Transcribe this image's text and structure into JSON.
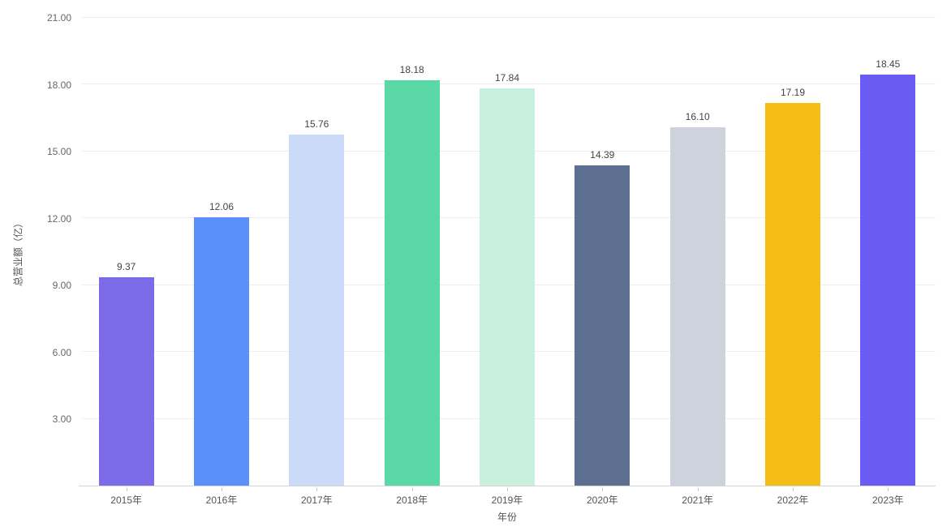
{
  "chart_data": {
    "type": "bar",
    "title": "",
    "categories": [
      "2015年",
      "2016年",
      "2017年",
      "2018年",
      "2019年",
      "2020年",
      "2021年",
      "2022年",
      "2023年"
    ],
    "values": [
      9.37,
      12.06,
      15.76,
      18.18,
      17.84,
      14.39,
      16.1,
      17.19,
      18.45
    ],
    "value_labels": [
      "9.37",
      "12.06",
      "15.76",
      "18.18",
      "17.84",
      "14.39",
      "16.10",
      "17.19",
      "18.45"
    ],
    "bar_colors": [
      "#7B6BE8",
      "#5B8FF9",
      "#CADAF8",
      "#5AD8A6",
      "#C9F0DF",
      "#5D7092",
      "#CDD2DD",
      "#F6BD16",
      "#6A5BF2"
    ],
    "xlabel": "年份",
    "ylabel": "总营业额（亿）",
    "ylim": [
      0,
      21
    ],
    "yticks": [
      {
        "value": 3,
        "label": "3.00"
      },
      {
        "value": 6,
        "label": "6.00"
      },
      {
        "value": 9,
        "label": "9.00"
      },
      {
        "value": 12,
        "label": "12.00"
      },
      {
        "value": 15,
        "label": "15.00"
      },
      {
        "value": 18,
        "label": "18.00"
      },
      {
        "value": 21,
        "label": "21.00"
      }
    ],
    "grid": "horizontal-only",
    "legend_position": "none",
    "background_color": "#ffffff",
    "axis_line_color": "#d4d4d4",
    "gridline_color": "#ededed",
    "value_label_color": "#444444",
    "tick_label_color": "#666666"
  }
}
